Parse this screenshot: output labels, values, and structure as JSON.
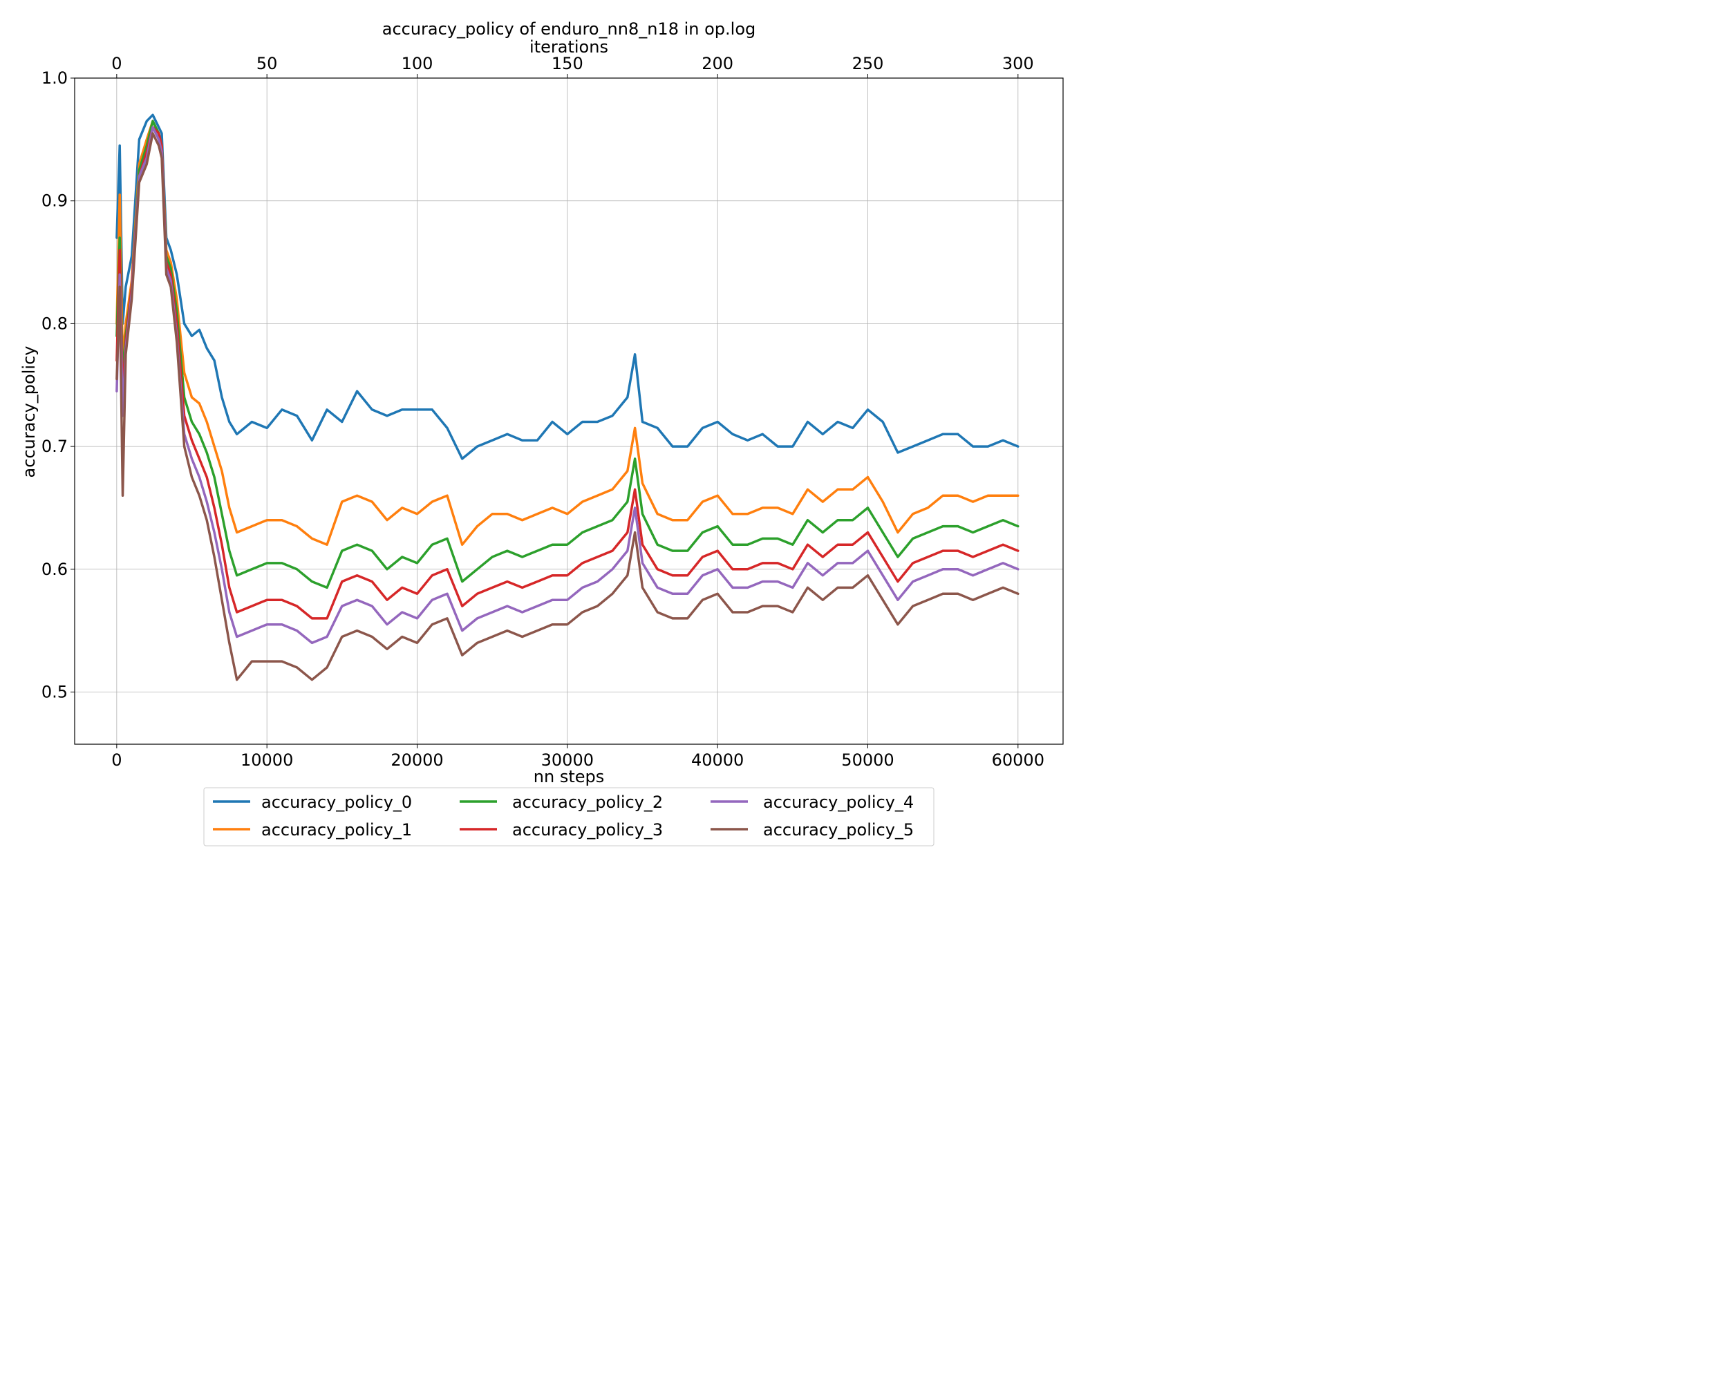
{
  "chart_data": {
    "type": "line",
    "title": "accuracy_policy of enduro_nn8_n18 in op.log",
    "top_xlabel": "iterations",
    "xlabel": "nn steps",
    "ylabel": "accuracy_policy",
    "xlim": [
      -2800,
      63000
    ],
    "ylim": [
      0.4575,
      1.0
    ],
    "top_xlim": [
      -14,
      315
    ],
    "x_ticks": [
      0,
      10000,
      20000,
      30000,
      40000,
      50000,
      60000
    ],
    "x_tick_labels": [
      "0",
      "10000",
      "20000",
      "30000",
      "40000",
      "50000",
      "60000"
    ],
    "top_x_ticks": [
      0,
      50,
      100,
      150,
      200,
      250,
      300
    ],
    "top_x_tick_labels": [
      "0",
      "50",
      "100",
      "150",
      "200",
      "250",
      "300"
    ],
    "y_ticks": [
      0.5,
      0.6,
      0.7,
      0.8,
      0.9,
      1.0
    ],
    "y_tick_labels": [
      "0.5",
      "0.6",
      "0.7",
      "0.8",
      "0.9",
      "1.0"
    ],
    "grid": true,
    "legend_position": "bottom-center",
    "x": [
      0,
      200,
      400,
      600,
      1000,
      1500,
      2000,
      2400,
      2800,
      3000,
      3300,
      3600,
      4000,
      4500,
      5000,
      5500,
      6000,
      6500,
      7000,
      7500,
      8000,
      9000,
      10000,
      11000,
      12000,
      13000,
      14000,
      15000,
      16000,
      17000,
      18000,
      19000,
      20000,
      21000,
      22000,
      23000,
      24000,
      25000,
      26000,
      27000,
      28000,
      29000,
      30000,
      31000,
      32000,
      33000,
      34000,
      34500,
      35000,
      36000,
      37000,
      38000,
      39000,
      40000,
      41000,
      42000,
      43000,
      44000,
      45000,
      46000,
      47000,
      48000,
      49000,
      50000,
      51000,
      52000,
      53000,
      54000,
      55000,
      56000,
      57000,
      58000,
      59000,
      60000
    ],
    "series": [
      {
        "name": "accuracy_policy_0",
        "color": "#1f77b4",
        "values": [
          0.87,
          0.945,
          0.8,
          0.83,
          0.855,
          0.95,
          0.965,
          0.97,
          0.96,
          0.955,
          0.87,
          0.86,
          0.84,
          0.8,
          0.79,
          0.795,
          0.78,
          0.77,
          0.74,
          0.72,
          0.71,
          0.72,
          0.715,
          0.73,
          0.725,
          0.705,
          0.73,
          0.72,
          0.745,
          0.73,
          0.725,
          0.73,
          0.73,
          0.73,
          0.715,
          0.69,
          0.7,
          0.705,
          0.71,
          0.705,
          0.705,
          0.72,
          0.71,
          0.72,
          0.72,
          0.725,
          0.74,
          0.775,
          0.72,
          0.715,
          0.7,
          0.7,
          0.715,
          0.72,
          0.71,
          0.705,
          0.71,
          0.7,
          0.7,
          0.72,
          0.71,
          0.72,
          0.715,
          0.73,
          0.72,
          0.695,
          0.7,
          0.705,
          0.71,
          0.71,
          0.7,
          0.7,
          0.705,
          0.7
        ]
      },
      {
        "name": "accuracy_policy_1",
        "color": "#ff7f0e",
        "values": [
          0.8,
          0.905,
          0.77,
          0.8,
          0.835,
          0.93,
          0.95,
          0.965,
          0.955,
          0.945,
          0.86,
          0.85,
          0.82,
          0.76,
          0.74,
          0.735,
          0.72,
          0.7,
          0.68,
          0.65,
          0.63,
          0.635,
          0.64,
          0.64,
          0.635,
          0.625,
          0.62,
          0.655,
          0.66,
          0.655,
          0.64,
          0.65,
          0.645,
          0.655,
          0.66,
          0.62,
          0.635,
          0.645,
          0.645,
          0.64,
          0.645,
          0.65,
          0.645,
          0.655,
          0.66,
          0.665,
          0.68,
          0.715,
          0.67,
          0.645,
          0.64,
          0.64,
          0.655,
          0.66,
          0.645,
          0.645,
          0.65,
          0.65,
          0.645,
          0.665,
          0.655,
          0.665,
          0.665,
          0.675,
          0.655,
          0.63,
          0.645,
          0.65,
          0.66,
          0.66,
          0.655,
          0.66,
          0.66,
          0.66
        ]
      },
      {
        "name": "accuracy_policy_2",
        "color": "#2ca02c",
        "values": [
          0.79,
          0.87,
          0.755,
          0.79,
          0.83,
          0.925,
          0.945,
          0.965,
          0.955,
          0.945,
          0.855,
          0.845,
          0.81,
          0.74,
          0.72,
          0.71,
          0.695,
          0.675,
          0.645,
          0.615,
          0.595,
          0.6,
          0.605,
          0.605,
          0.6,
          0.59,
          0.585,
          0.615,
          0.62,
          0.615,
          0.6,
          0.61,
          0.605,
          0.62,
          0.625,
          0.59,
          0.6,
          0.61,
          0.615,
          0.61,
          0.615,
          0.62,
          0.62,
          0.63,
          0.635,
          0.64,
          0.655,
          0.69,
          0.645,
          0.62,
          0.615,
          0.615,
          0.63,
          0.635,
          0.62,
          0.62,
          0.625,
          0.625,
          0.62,
          0.64,
          0.63,
          0.64,
          0.64,
          0.65,
          0.63,
          0.61,
          0.625,
          0.63,
          0.635,
          0.635,
          0.63,
          0.635,
          0.64,
          0.635
        ]
      },
      {
        "name": "accuracy_policy_3",
        "color": "#d62728",
        "values": [
          0.77,
          0.86,
          0.74,
          0.785,
          0.83,
          0.92,
          0.94,
          0.96,
          0.955,
          0.945,
          0.85,
          0.84,
          0.8,
          0.725,
          0.705,
          0.69,
          0.675,
          0.65,
          0.62,
          0.585,
          0.565,
          0.57,
          0.575,
          0.575,
          0.57,
          0.56,
          0.56,
          0.59,
          0.595,
          0.59,
          0.575,
          0.585,
          0.58,
          0.595,
          0.6,
          0.57,
          0.58,
          0.585,
          0.59,
          0.585,
          0.59,
          0.595,
          0.595,
          0.605,
          0.61,
          0.615,
          0.63,
          0.665,
          0.62,
          0.6,
          0.595,
          0.595,
          0.61,
          0.615,
          0.6,
          0.6,
          0.605,
          0.605,
          0.6,
          0.62,
          0.61,
          0.62,
          0.62,
          0.63,
          0.61,
          0.59,
          0.605,
          0.61,
          0.615,
          0.615,
          0.61,
          0.615,
          0.62,
          0.615
        ]
      },
      {
        "name": "accuracy_policy_4",
        "color": "#9467bd",
        "values": [
          0.745,
          0.84,
          0.725,
          0.78,
          0.825,
          0.92,
          0.935,
          0.96,
          0.95,
          0.94,
          0.845,
          0.835,
          0.79,
          0.71,
          0.69,
          0.675,
          0.655,
          0.63,
          0.6,
          0.565,
          0.545,
          0.55,
          0.555,
          0.555,
          0.55,
          0.54,
          0.545,
          0.57,
          0.575,
          0.57,
          0.555,
          0.565,
          0.56,
          0.575,
          0.58,
          0.55,
          0.56,
          0.565,
          0.57,
          0.565,
          0.57,
          0.575,
          0.575,
          0.585,
          0.59,
          0.6,
          0.615,
          0.65,
          0.605,
          0.585,
          0.58,
          0.58,
          0.595,
          0.6,
          0.585,
          0.585,
          0.59,
          0.59,
          0.585,
          0.605,
          0.595,
          0.605,
          0.605,
          0.615,
          0.595,
          0.575,
          0.59,
          0.595,
          0.6,
          0.6,
          0.595,
          0.6,
          0.605,
          0.6
        ]
      },
      {
        "name": "accuracy_policy_5",
        "color": "#8c564b",
        "values": [
          0.755,
          0.83,
          0.66,
          0.775,
          0.82,
          0.915,
          0.93,
          0.955,
          0.945,
          0.935,
          0.84,
          0.83,
          0.785,
          0.7,
          0.675,
          0.66,
          0.64,
          0.61,
          0.575,
          0.54,
          0.51,
          0.525,
          0.525,
          0.525,
          0.52,
          0.51,
          0.52,
          0.545,
          0.55,
          0.545,
          0.535,
          0.545,
          0.54,
          0.555,
          0.56,
          0.53,
          0.54,
          0.545,
          0.55,
          0.545,
          0.55,
          0.555,
          0.555,
          0.565,
          0.57,
          0.58,
          0.595,
          0.63,
          0.585,
          0.565,
          0.56,
          0.56,
          0.575,
          0.58,
          0.565,
          0.565,
          0.57,
          0.57,
          0.565,
          0.585,
          0.575,
          0.585,
          0.585,
          0.595,
          0.575,
          0.555,
          0.57,
          0.575,
          0.58,
          0.58,
          0.575,
          0.58,
          0.585,
          0.58
        ]
      }
    ]
  }
}
